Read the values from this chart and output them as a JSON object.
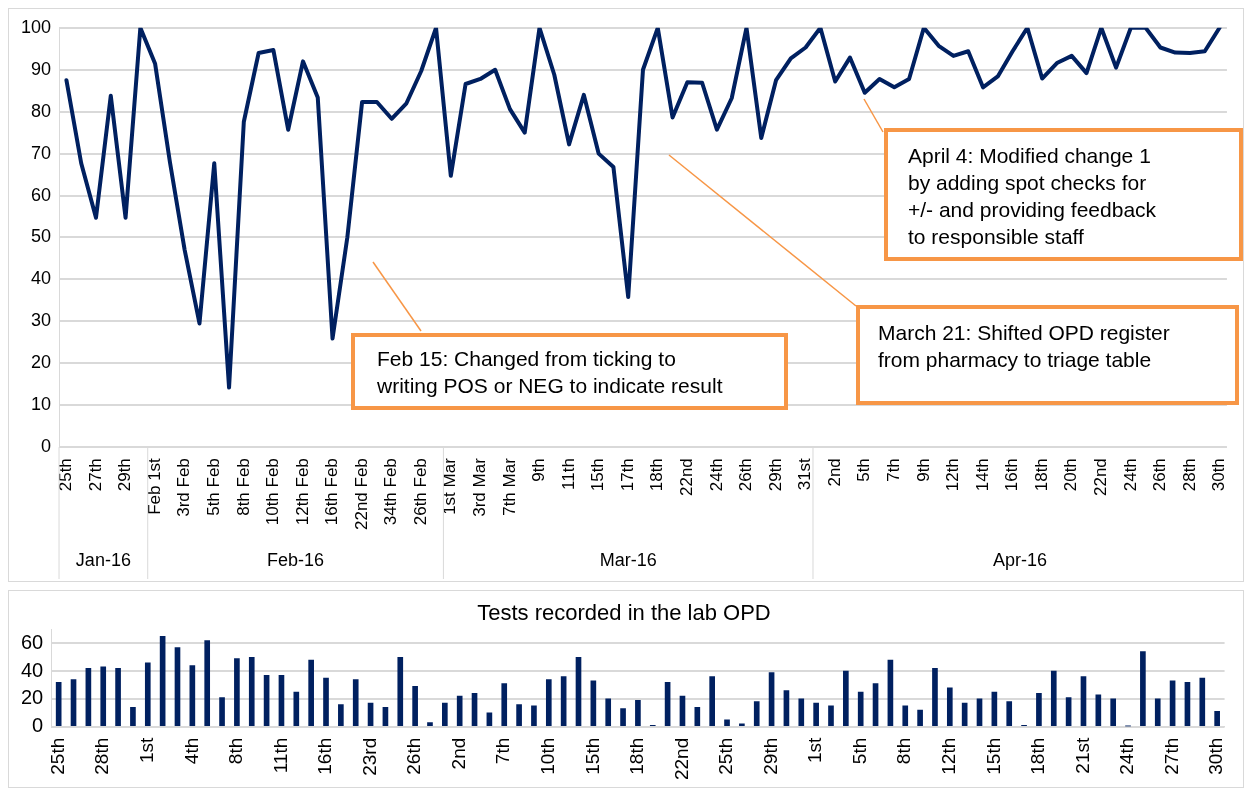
{
  "chart_data": [
    {
      "type": "line",
      "categories": [
        "25th",
        null,
        "27th",
        null,
        "29th",
        null,
        "Feb 1st",
        null,
        "3rd Feb",
        null,
        "5th Feb",
        null,
        "8th Feb",
        null,
        "10th Feb",
        null,
        "12th Feb",
        null,
        "16th Feb",
        null,
        "22nd Feb",
        null,
        "34th Feb",
        null,
        "26th Feb",
        null,
        "1st Mar",
        null,
        "3rd Mar",
        null,
        "7th Mar",
        null,
        "9th",
        null,
        "11th",
        null,
        "15th",
        null,
        "17th",
        null,
        "18th",
        null,
        "22nd",
        null,
        "24th",
        null,
        "26th",
        null,
        "29th",
        null,
        "31st",
        null,
        "2nd",
        null,
        "5th",
        null,
        "7th",
        null,
        "9th",
        null,
        "12th",
        null,
        "14th",
        null,
        "16th",
        null,
        "18th",
        null,
        "20th",
        null,
        "22nd",
        null,
        "24th",
        null,
        "26th",
        null,
        "28th",
        null,
        "30th"
      ],
      "series": [
        {
          "color": "#002060",
          "values": [
            87.5,
            67.7,
            54.7,
            83.8,
            54.7,
            100,
            91.4,
            68,
            47,
            29.5,
            67.7,
            14.2,
            77.6,
            94,
            94.7,
            75.7,
            92,
            83.4,
            25.9,
            50,
            82.3,
            82.3,
            78.3,
            82,
            89.7,
            100,
            64.7,
            86.6,
            87.8,
            90,
            80.6,
            75,
            100,
            88.8,
            72.2,
            84,
            70,
            66.8,
            35.8,
            90,
            100,
            78.6,
            87,
            86.9,
            75.7,
            83.2,
            100,
            73.7,
            87.5,
            92.7,
            95.3,
            100,
            87.2,
            92.9,
            84.5,
            87.8,
            85.8,
            87.8,
            100,
            95.7,
            93.3,
            94.4,
            85.8,
            88.4,
            94.4,
            100,
            87.9,
            91.6,
            93.3,
            89.2,
            100,
            90.5,
            100,
            100,
            95.3,
            94.1,
            94,
            94.4,
            100
          ]
        }
      ],
      "ylim": [
        0,
        100
      ],
      "yticks": [
        0,
        10,
        20,
        30,
        40,
        50,
        60,
        70,
        80,
        90,
        100
      ],
      "grid": "y",
      "marker": "none",
      "line_style": "solid",
      "annotations": [
        "Feb 15: Changed from ticking to writing POS or NEG to indicate result",
        "March 21: Shifted OPD register from pharmacy to triage table",
        "April 4: Modified change 1 by adding spot checks for +/- and providing feedback to responsible staff",
        "Jan-16",
        "Feb-16",
        "Mar-16",
        "Apr-16"
      ]
    },
    {
      "type": "bar",
      "title": "Tests recorded in the lab OPD",
      "categories": [
        "25th",
        null,
        null,
        "28th",
        null,
        null,
        "1st",
        null,
        null,
        "4th",
        null,
        null,
        "8th",
        null,
        null,
        "11th",
        null,
        null,
        "16th",
        null,
        null,
        "23rd",
        null,
        null,
        "26th",
        null,
        null,
        "2nd",
        null,
        null,
        "7th",
        null,
        null,
        "10th",
        null,
        null,
        "15th",
        null,
        null,
        "18th",
        null,
        null,
        "22nd",
        null,
        null,
        "25th",
        null,
        null,
        "29th",
        null,
        null,
        "1st",
        null,
        null,
        "5th",
        null,
        null,
        "8th",
        null,
        null,
        "12th",
        null,
        null,
        "15th",
        null,
        null,
        "18th",
        null,
        null,
        "21st",
        null,
        null,
        "24th",
        null,
        null,
        "27th",
        null,
        null,
        "30th"
      ],
      "series": [
        {
          "color": "#002060",
          "values": [
            32,
            34,
            42,
            43,
            42,
            14,
            46,
            65,
            57,
            44,
            62,
            21,
            49,
            50,
            37,
            37,
            25,
            48,
            35,
            16,
            34,
            17,
            14,
            50,
            29,
            3,
            17,
            22,
            24,
            10,
            31,
            16,
            15,
            34,
            36,
            50,
            33,
            20,
            13,
            19,
            1,
            32,
            22,
            14,
            36,
            5,
            2,
            18,
            39,
            26,
            20,
            17,
            15,
            40,
            25,
            31,
            48,
            15,
            12,
            42,
            28,
            17,
            20,
            25,
            18,
            1,
            24,
            40,
            21,
            36,
            23,
            20,
            0.4,
            54,
            20,
            33,
            32,
            35,
            11
          ]
        }
      ],
      "ylim": [
        0,
        70
      ],
      "yticks": [
        0,
        20,
        40,
        60
      ],
      "grid": "y"
    }
  ]
}
